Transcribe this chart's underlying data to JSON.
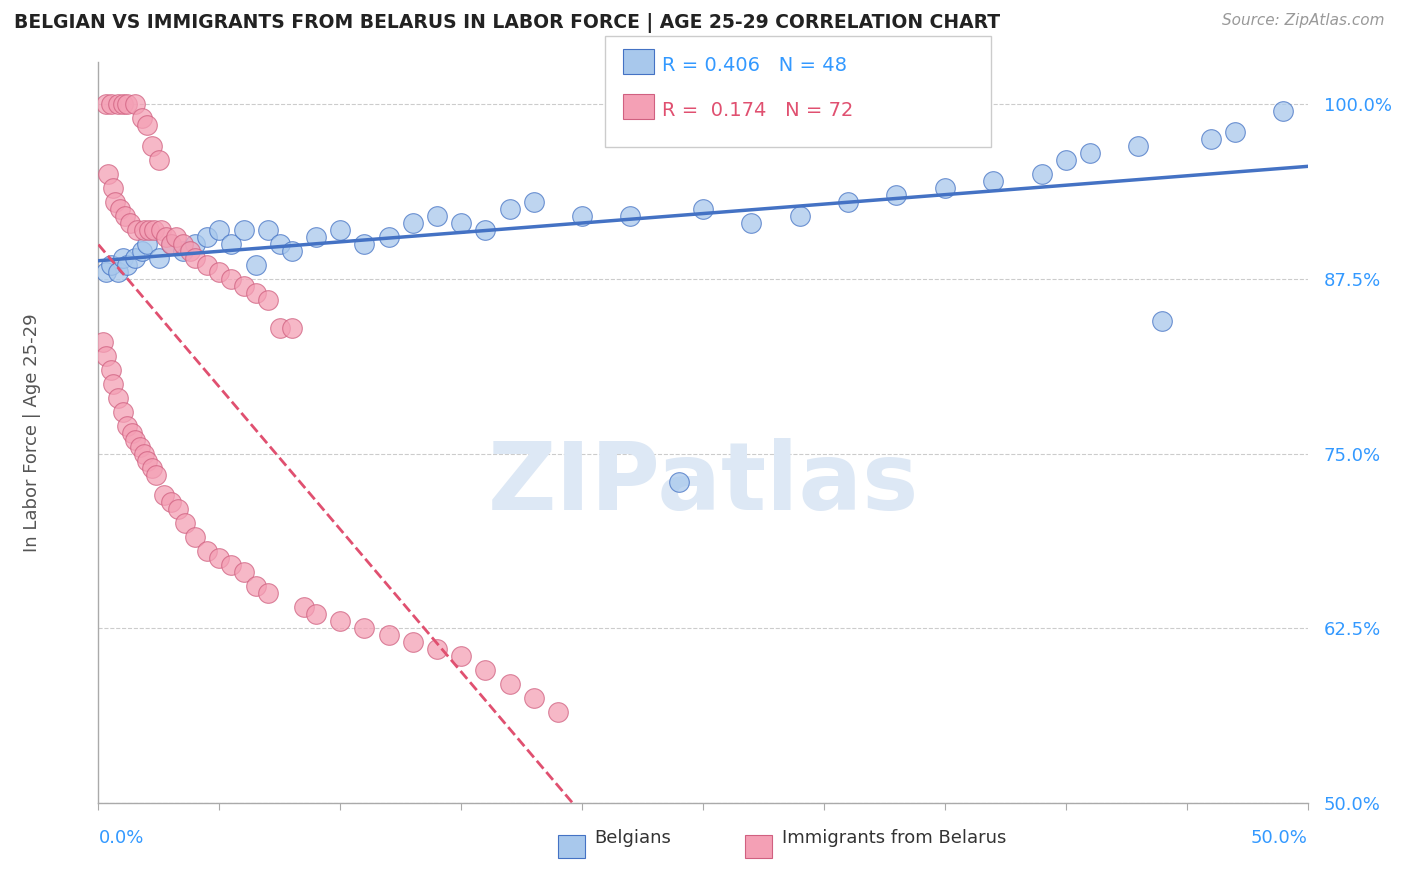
{
  "title": "BELGIAN VS IMMIGRANTS FROM BELARUS IN LABOR FORCE | AGE 25-29 CORRELATION CHART",
  "source": "Source: ZipAtlas.com",
  "ylabel": "In Labor Force | Age 25-29",
  "yaxis_ticks": [
    50.0,
    62.5,
    75.0,
    87.5,
    100.0
  ],
  "xmin": 0.0,
  "xmax": 50.0,
  "ymin": 50.0,
  "ymax": 103.0,
  "r_belgian": 0.406,
  "n_belgian": 48,
  "r_belarus": 0.174,
  "n_belarus": 72,
  "color_belgian": "#A8C8EC",
  "color_belarus": "#F4A0B5",
  "trendline_belgian": "#4472C4",
  "trendline_belarus": "#E05070",
  "legend_label_belgian": "Belgians",
  "legend_label_belarus": "Immigrants from Belarus",
  "belgian_x": [
    0.3,
    0.5,
    0.8,
    1.0,
    1.2,
    1.5,
    1.8,
    2.0,
    2.5,
    3.0,
    3.5,
    4.0,
    4.5,
    5.0,
    5.5,
    6.0,
    7.0,
    7.5,
    8.0,
    9.0,
    10.0,
    11.0,
    12.0,
    13.0,
    14.0,
    15.0,
    17.0,
    18.0,
    20.0,
    22.0,
    24.0,
    25.0,
    27.0,
    29.0,
    31.0,
    33.0,
    35.0,
    37.0,
    39.0,
    40.0,
    41.0,
    43.0,
    44.0,
    46.0,
    47.0,
    49.0,
    6.5,
    16.0
  ],
  "belgian_y": [
    88.0,
    88.5,
    88.0,
    89.0,
    88.5,
    89.0,
    89.5,
    90.0,
    89.0,
    90.0,
    89.5,
    90.0,
    90.5,
    91.0,
    90.0,
    91.0,
    91.0,
    90.0,
    89.5,
    90.5,
    91.0,
    90.0,
    90.5,
    91.5,
    92.0,
    91.5,
    92.5,
    93.0,
    92.0,
    92.0,
    73.0,
    92.5,
    91.5,
    92.0,
    93.0,
    93.5,
    94.0,
    94.5,
    95.0,
    96.0,
    96.5,
    97.0,
    84.5,
    97.5,
    98.0,
    99.5,
    88.5,
    91.0
  ],
  "belarus_x": [
    0.3,
    0.5,
    0.8,
    1.0,
    1.2,
    1.5,
    1.8,
    2.0,
    2.2,
    2.5,
    0.4,
    0.6,
    0.7,
    0.9,
    1.1,
    1.3,
    1.6,
    1.9,
    2.1,
    2.3,
    2.6,
    2.8,
    3.0,
    3.2,
    3.5,
    3.8,
    4.0,
    4.5,
    5.0,
    5.5,
    6.0,
    6.5,
    7.0,
    7.5,
    8.0,
    0.2,
    0.3,
    0.5,
    0.6,
    0.8,
    1.0,
    1.2,
    1.4,
    1.5,
    1.7,
    1.9,
    2.0,
    2.2,
    2.4,
    2.7,
    3.0,
    3.3,
    3.6,
    4.0,
    4.5,
    5.0,
    5.5,
    6.0,
    6.5,
    7.0,
    8.5,
    9.0,
    10.0,
    11.0,
    12.0,
    13.0,
    14.0,
    15.0,
    16.0,
    17.0,
    18.0,
    19.0
  ],
  "belarus_y": [
    100.0,
    100.0,
    100.0,
    100.0,
    100.0,
    100.0,
    99.0,
    98.5,
    97.0,
    96.0,
    95.0,
    94.0,
    93.0,
    92.5,
    92.0,
    91.5,
    91.0,
    91.0,
    91.0,
    91.0,
    91.0,
    90.5,
    90.0,
    90.5,
    90.0,
    89.5,
    89.0,
    88.5,
    88.0,
    87.5,
    87.0,
    86.5,
    86.0,
    84.0,
    84.0,
    83.0,
    82.0,
    81.0,
    80.0,
    79.0,
    78.0,
    77.0,
    76.5,
    76.0,
    75.5,
    75.0,
    74.5,
    74.0,
    73.5,
    72.0,
    71.5,
    71.0,
    70.0,
    69.0,
    68.0,
    67.5,
    67.0,
    66.5,
    65.5,
    65.0,
    64.0,
    63.5,
    63.0,
    62.5,
    62.0,
    61.5,
    61.0,
    60.5,
    59.5,
    58.5,
    57.5,
    56.5
  ]
}
